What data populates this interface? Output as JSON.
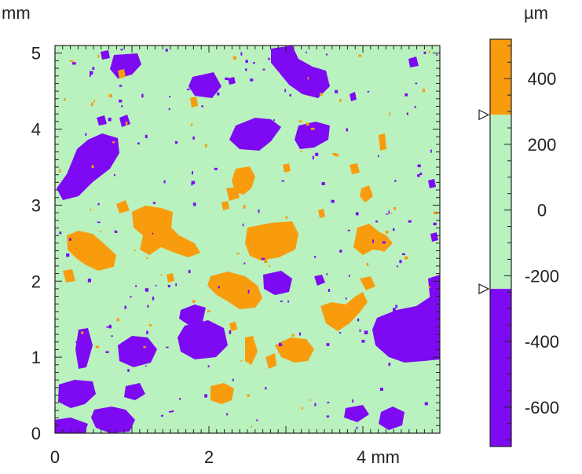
{
  "map": {
    "y_unit": "mm",
    "x_unit": "mm",
    "x_ticks": [
      {
        "value": 0,
        "label": "0"
      },
      {
        "value": 2,
        "label": "2"
      },
      {
        "value": 4,
        "label": "4 mm"
      }
    ],
    "y_ticks": [
      {
        "value": 0,
        "label": "0"
      },
      {
        "value": 1,
        "label": "1"
      },
      {
        "value": 2,
        "label": "2"
      },
      {
        "value": 3,
        "label": "3"
      },
      {
        "value": 4,
        "label": "4"
      },
      {
        "value": 5,
        "label": "5"
      }
    ],
    "x_range": [
      0,
      5
    ],
    "y_range": [
      0,
      5.1
    ]
  },
  "colorbar": {
    "unit": "µm",
    "ticks": [
      {
        "value": 400,
        "label": "400"
      },
      {
        "value": 200,
        "label": "200"
      },
      {
        "value": 0,
        "label": "0"
      },
      {
        "value": -200,
        "label": "-200"
      },
      {
        "value": -400,
        "label": "-400"
      },
      {
        "value": -600,
        "label": "-600"
      }
    ],
    "range": [
      -720,
      520
    ],
    "bands": [
      {
        "from": 290,
        "to": 520,
        "color": "#f89c0e"
      },
      {
        "from": -240,
        "to": 290,
        "color": "#b9f2bf"
      },
      {
        "from": -720,
        "to": -240,
        "color": "#7d0af2"
      }
    ],
    "markers": [
      290,
      -240
    ]
  },
  "colors": {
    "high": "#f89c0e",
    "mid": "#b9f2bf",
    "low": "#7d0af2"
  }
}
